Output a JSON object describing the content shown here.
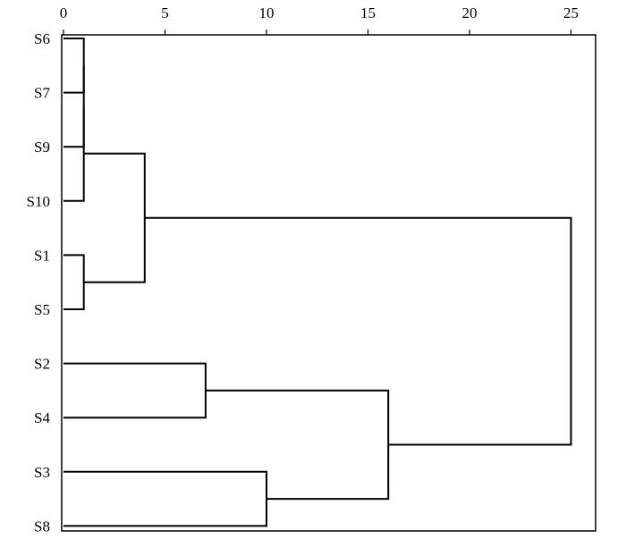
{
  "chart_data": {
    "type": "dendrogram",
    "orientation": "horizontal",
    "x_axis_position": "top",
    "xlim": [
      0,
      26
    ],
    "x_ticks": [
      0,
      5,
      10,
      15,
      20,
      25
    ],
    "x_tick_labels": [
      "0",
      "5",
      "10",
      "15",
      "20",
      "25"
    ],
    "leaves": [
      "S6",
      "S7",
      "S9",
      "S10",
      "S1",
      "S5",
      "S2",
      "S4",
      "S3",
      "S8"
    ],
    "merges": [
      {
        "id": "A",
        "children": [
          "S6",
          "S7"
        ],
        "height": 1
      },
      {
        "id": "B",
        "children": [
          "A",
          "S9"
        ],
        "height": 1
      },
      {
        "id": "C",
        "children": [
          "B",
          "S10"
        ],
        "height": 1
      },
      {
        "id": "D",
        "children": [
          "S1",
          "S5"
        ],
        "height": 1
      },
      {
        "id": "E",
        "children": [
          "C",
          "D"
        ],
        "height": 4
      },
      {
        "id": "F",
        "children": [
          "S2",
          "S4"
        ],
        "height": 7
      },
      {
        "id": "G",
        "children": [
          "S3",
          "S8"
        ],
        "height": 10
      },
      {
        "id": "H",
        "children": [
          "F",
          "G"
        ],
        "height": 16
      },
      {
        "id": "I",
        "children": [
          "E",
          "H"
        ],
        "height": 25
      }
    ]
  }
}
